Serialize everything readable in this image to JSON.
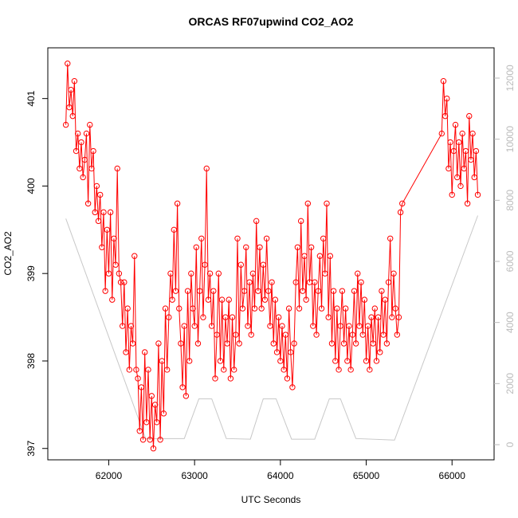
{
  "chart_data": {
    "type": "line",
    "title": "ORCAS RF07upwind CO2_AO2",
    "x_label": "UTC Seconds",
    "y_label": "CO2_AO2",
    "xlim": [
      61290,
      66490
    ],
    "ylim": [
      396.87,
      401.58
    ],
    "y2lim": [
      -496,
      12991
    ],
    "xticks": [
      62000,
      63000,
      64000,
      65000,
      66000
    ],
    "yticks": [
      397,
      398,
      399,
      400,
      401
    ],
    "y2ticks": [
      0,
      2000,
      4000,
      6000,
      8000,
      10000,
      12000
    ],
    "series": [
      {
        "color": "#ff0000",
        "markers": true,
        "x": [
          61500,
          61520,
          61540,
          61560,
          61580,
          61600,
          61620,
          61640,
          61660,
          61680,
          61700,
          61720,
          61740,
          61760,
          61780,
          61800,
          61820,
          61840,
          61860,
          61880,
          61900,
          61920,
          61940,
          61960,
          61980,
          62000,
          62020,
          62040,
          62060,
          62080,
          62100,
          62120,
          62140,
          62160,
          62180,
          62200,
          62220,
          62240,
          62260,
          62280,
          62300,
          62320,
          62340,
          62360,
          62380,
          62400,
          62420,
          62440,
          62460,
          62480,
          62500,
          62520,
          62540,
          62560,
          62580,
          62600,
          62620,
          62640,
          62660,
          62680,
          62700,
          62720,
          62740,
          62760,
          62780,
          62800,
          62820,
          62840,
          62860,
          62880,
          62900,
          62920,
          62940,
          62960,
          62980,
          63000,
          63020,
          63040,
          63060,
          63080,
          63100,
          63120,
          63140,
          63160,
          63180,
          63200,
          63220,
          63240,
          63260,
          63280,
          63300,
          63320,
          63340,
          63360,
          63380,
          63400,
          63420,
          63440,
          63460,
          63480,
          63500,
          63520,
          63540,
          63560,
          63580,
          63600,
          63620,
          63640,
          63660,
          63680,
          63700,
          63720,
          63740,
          63760,
          63780,
          63800,
          63820,
          63840,
          63860,
          63880,
          63900,
          63920,
          63940,
          63960,
          63980,
          64000,
          64020,
          64040,
          64060,
          64080,
          64100,
          64120,
          64140,
          64160,
          64180,
          64200,
          64220,
          64240,
          64260,
          64280,
          64300,
          64320,
          64340,
          64360,
          64380,
          64400,
          64420,
          64440,
          64460,
          64480,
          64500,
          64520,
          64540,
          64560,
          64580,
          64600,
          64620,
          64640,
          64660,
          64680,
          64700,
          64720,
          64740,
          64760,
          64780,
          64800,
          64820,
          64840,
          64860,
          64880,
          64900,
          64920,
          64940,
          64960,
          64980,
          65000,
          65020,
          65040,
          65060,
          65080,
          65100,
          65120,
          65140,
          65160,
          65180,
          65200,
          65220,
          65240,
          65260,
          65280,
          65300,
          65320,
          65340,
          65360,
          65380,
          65400,
          65420,
          65880,
          65900,
          65920,
          65940,
          65960,
          65980,
          66000,
          66020,
          66040,
          66060,
          66080,
          66100,
          66120,
          66140,
          66160,
          66180,
          66200,
          66220,
          66240,
          66260,
          66280,
          66300
        ],
        "values": [
          400.7,
          401.4,
          400.9,
          401.1,
          400.8,
          401.2,
          400.4,
          400.6,
          400.2,
          400.5,
          400.1,
          400.3,
          400.6,
          399.8,
          400.7,
          400.2,
          400.4,
          399.7,
          400.0,
          399.6,
          399.9,
          399.3,
          399.7,
          398.8,
          399.5,
          399.0,
          399.7,
          398.7,
          399.4,
          399.1,
          400.2,
          399.0,
          398.9,
          398.4,
          398.9,
          398.1,
          398.6,
          397.9,
          398.4,
          398.2,
          399.2,
          397.9,
          397.8,
          397.2,
          397.7,
          397.1,
          398.1,
          397.3,
          397.9,
          397.1,
          397.6,
          397.0,
          397.5,
          397.3,
          398.2,
          397.1,
          398.0,
          397.4,
          398.6,
          397.9,
          398.5,
          399.0,
          398.7,
          399.5,
          398.8,
          399.8,
          398.6,
          398.2,
          397.7,
          398.4,
          397.6,
          398.8,
          398.0,
          399.0,
          398.6,
          398.4,
          399.3,
          398.2,
          398.8,
          399.4,
          398.5,
          399.1,
          400.2,
          398.7,
          399.0,
          398.4,
          398.8,
          397.8,
          398.3,
          399.0,
          398.0,
          398.7,
          397.9,
          398.5,
          398.2,
          398.7,
          397.8,
          398.5,
          397.9,
          398.3,
          399.4,
          398.2,
          399.1,
          398.6,
          398.8,
          399.3,
          398.4,
          398.9,
          398.3,
          399.0,
          398.6,
          399.6,
          398.8,
          399.3,
          398.6,
          399.1,
          398.7,
          399.4,
          398.8,
          398.4,
          398.9,
          398.2,
          398.7,
          398.1,
          398.5,
          398.0,
          398.4,
          397.9,
          398.3,
          397.8,
          398.6,
          398.1,
          397.7,
          398.2,
          398.9,
          399.3,
          398.6,
          399.6,
          398.8,
          399.2,
          398.7,
          399.8,
          398.9,
          399.3,
          398.4,
          398.9,
          398.3,
          398.8,
          399.2,
          398.6,
          399.4,
          399.0,
          399.8,
          398.5,
          399.2,
          398.2,
          398.8,
          398.0,
          398.6,
          397.9,
          398.4,
          398.8,
          398.2,
          398.6,
          398.0,
          398.4,
          397.9,
          398.3,
          398.8,
          398.2,
          399.0,
          398.4,
          398.9,
          398.3,
          398.7,
          398.0,
          398.4,
          397.9,
          398.5,
          398.2,
          398.6,
          398.0,
          398.5,
          398.1,
          398.8,
          398.3,
          398.7,
          398.2,
          398.9,
          399.4,
          398.5,
          399.0,
          398.6,
          398.3,
          398.5,
          399.7,
          399.8,
          400.6,
          401.2,
          400.8,
          401.0,
          400.2,
          400.5,
          399.9,
          400.4,
          400.7,
          400.1,
          400.5,
          400.0,
          400.6,
          400.2,
          400.4,
          399.8,
          400.8,
          400.3,
          400.6,
          400.1,
          400.4,
          399.9
        ]
      },
      {
        "color": "#c8c8c8",
        "axis": "y2",
        "markers": false,
        "x": [
          61500,
          62430,
          62880,
          63050,
          63200,
          63370,
          63650,
          63800,
          63950,
          64130,
          64400,
          64570,
          64700,
          64880,
          65330,
          66300
        ],
        "values": [
          7400,
          200,
          200,
          1500,
          1500,
          200,
          180,
          1500,
          1500,
          180,
          180,
          1500,
          1500,
          200,
          150,
          7500
        ]
      }
    ]
  }
}
